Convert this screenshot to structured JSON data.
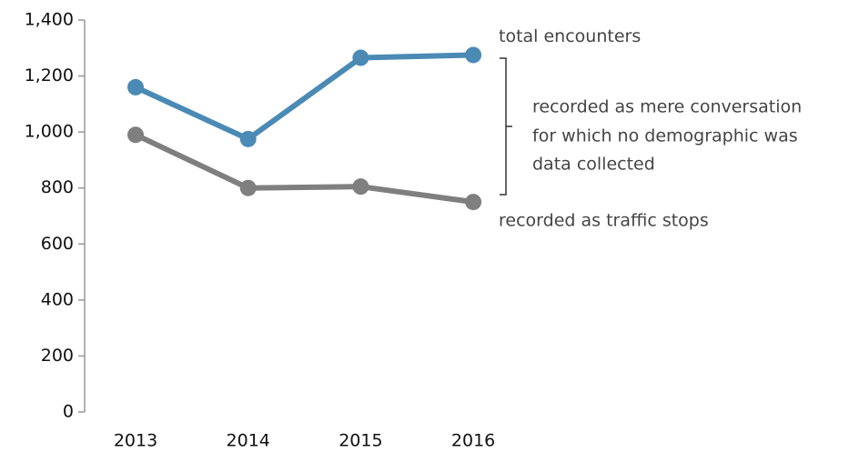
{
  "chart_data": {
    "type": "line",
    "categories": [
      "2013",
      "2014",
      "2015",
      "2016"
    ],
    "series": [
      {
        "name": "total encounters",
        "color": "#4a8ab5",
        "values": [
          1160,
          975,
          1265,
          1275
        ]
      },
      {
        "name": "recorded as traffic stops",
        "color": "#7f7f7f",
        "values": [
          990,
          800,
          805,
          750
        ]
      }
    ],
    "annotation": [
      "recorded as mere conversation",
      "for which no demographic was",
      "data collected"
    ],
    "ylim": [
      0,
      1400
    ],
    "yticks": [
      0,
      200,
      400,
      600,
      800,
      {
        "value": 1000,
        "label": "1,000"
      },
      {
        "value": 1200,
        "label": "1,200"
      },
      {
        "value": 1400,
        "label": "1,400"
      }
    ],
    "grid": false
  }
}
